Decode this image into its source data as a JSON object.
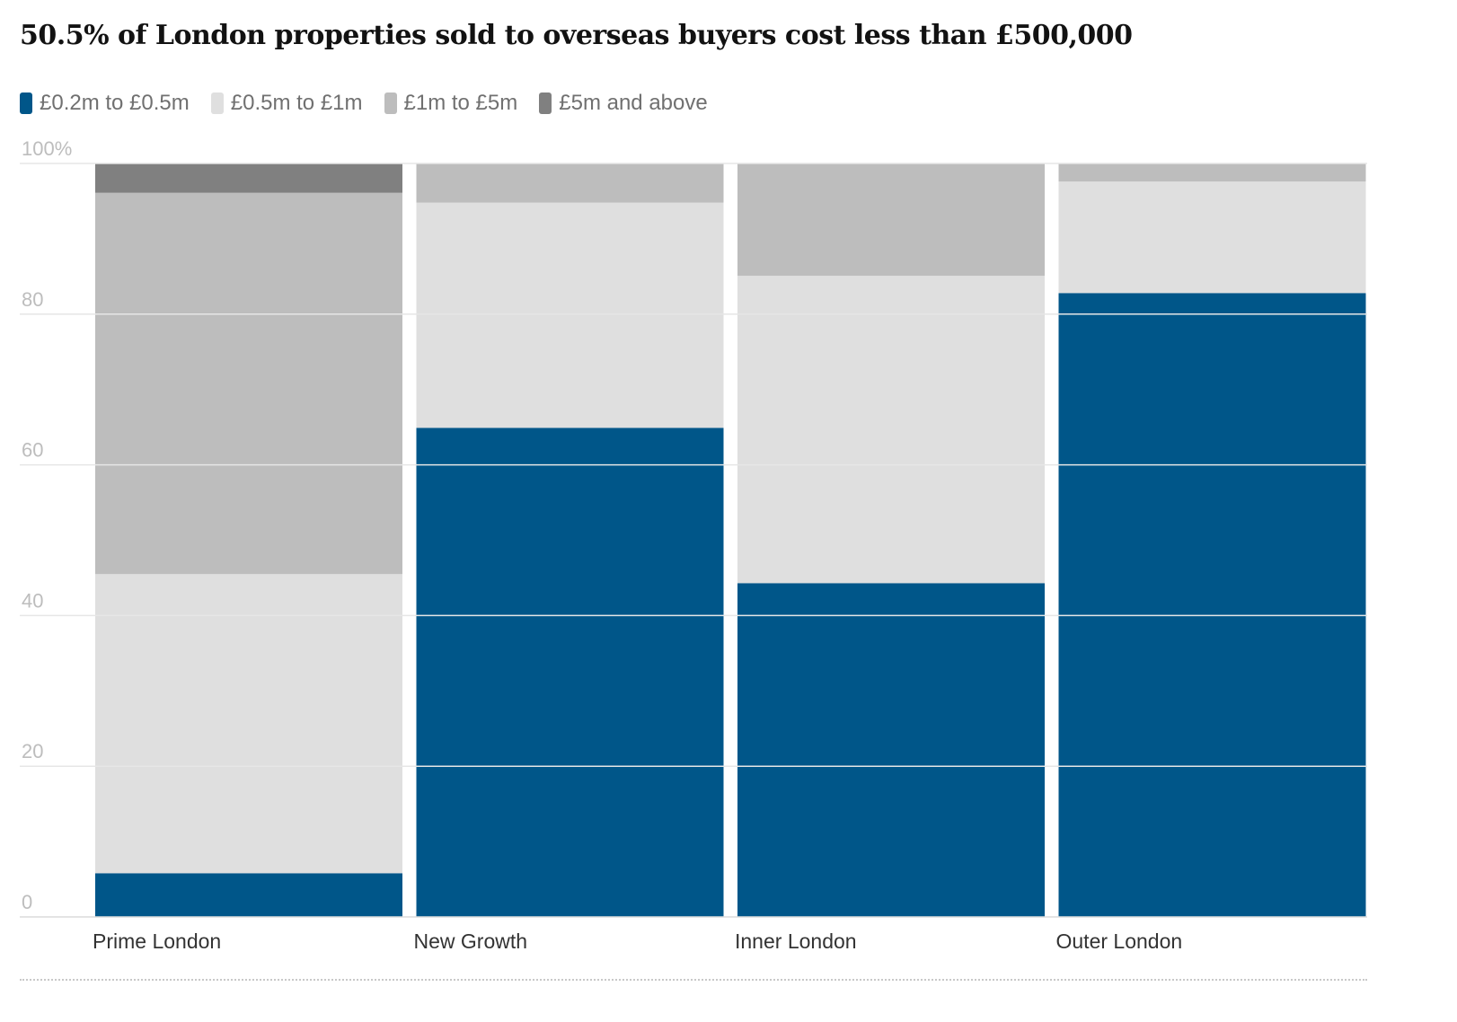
{
  "chart_data": {
    "type": "bar",
    "stacked": true,
    "title": "50.5% of London properties sold to overseas buyers cost less than £500,000",
    "categories": [
      "Prime London",
      "New Growth",
      "Inner London",
      "Outer London"
    ],
    "series": [
      {
        "name": "£0.2m to £0.5m",
        "color": "#005689",
        "values": [
          5.8,
          64.9,
          44.3,
          82.8
        ]
      },
      {
        "name": "£0.5m to £1m",
        "color": "#dfdfdf",
        "values": [
          39.7,
          29.9,
          40.8,
          14.8
        ]
      },
      {
        "name": "£1m to £5m",
        "color": "#bdbdbd",
        "values": [
          50.6,
          5.2,
          14.9,
          2.4
        ]
      },
      {
        "name": "£5m and above",
        "color": "#808080",
        "values": [
          3.9,
          0,
          0,
          0
        ]
      }
    ],
    "y_ticks": [
      "0",
      "20",
      "40",
      "60",
      "80",
      "100%"
    ],
    "ylim": [
      0,
      100
    ],
    "grid": true,
    "xlabel": "",
    "ylabel": ""
  }
}
